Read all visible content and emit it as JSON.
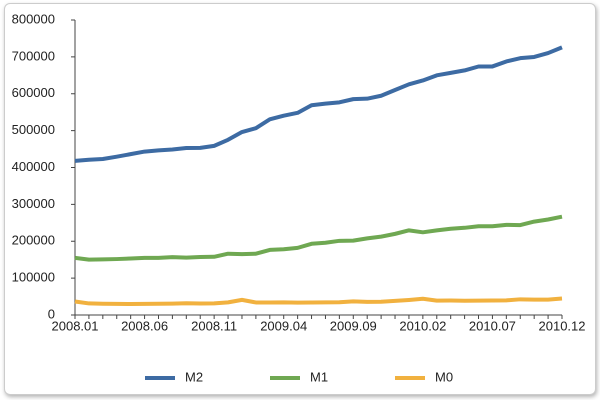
{
  "chart_data": {
    "type": "line",
    "categories": [
      "2008.01",
      null,
      null,
      null,
      null,
      "2008.06",
      null,
      null,
      null,
      null,
      "2008.11",
      null,
      null,
      null,
      null,
      "2009.04",
      null,
      null,
      null,
      null,
      "2009.09",
      null,
      null,
      null,
      null,
      "2010.02",
      null,
      null,
      null,
      null,
      "2010.07",
      null,
      null,
      null,
      null,
      "2010.12"
    ],
    "series": [
      {
        "name": "M2",
        "color": "#3d6ba3",
        "values": [
          417846,
          421037,
          423054,
          429313,
          436222,
          443141,
          446362,
          448846,
          452898,
          453133,
          458644,
          475167,
          496135,
          506708,
          530627,
          540481,
          548263,
          568916,
          573102,
          576699,
          585405,
          586643,
          594604,
          610225,
          625609,
          636072,
          649947,
          656561,
          663351,
          673921,
          674051,
          687506,
          696471,
          699776,
          710339,
          725852
        ]
      },
      {
        "name": "M1",
        "color": "#6fa852",
        "values": [
          154872,
          150177,
          150867,
          151695,
          153344,
          154820,
          154992,
          156889,
          155748,
          157195,
          157826,
          166217,
          165214,
          166150,
          176490,
          178213,
          182025,
          193138,
          195889,
          201161,
          201709,
          207747,
          212493,
          220002,
          229589,
          224286,
          229398,
          233909,
          236472,
          240580,
          240665,
          244340,
          243822,
          253313,
          258956,
          266622
        ]
      },
      {
        "name": "M0",
        "color": "#f1b13f",
        "values": [
          36673,
          31385,
          30433,
          30150,
          29710,
          30230,
          30547,
          30751,
          31725,
          31028,
          31449,
          34219,
          41083,
          34026,
          33747,
          34215,
          33640,
          33746,
          34240,
          34706,
          36788,
          35730,
          35968,
          38246,
          40758,
          44041,
          39080,
          39193,
          38590,
          38906,
          39285,
          39814,
          42530,
          41542,
          41778,
          44628
        ]
      }
    ],
    "ylim": [
      0,
      800000
    ],
    "yticks": [
      0,
      100000,
      200000,
      300000,
      400000,
      500000,
      600000,
      700000,
      800000
    ],
    "grid": false,
    "legend": "bottom"
  }
}
